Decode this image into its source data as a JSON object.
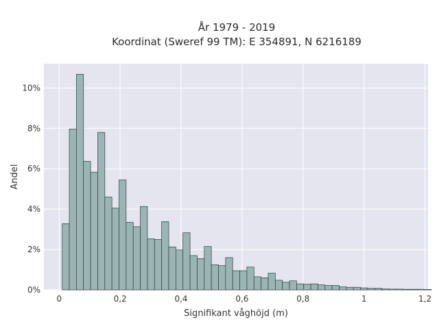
{
  "chart_data": {
    "type": "bar",
    "title_line1": "År 1979 - 2019",
    "title_line2": "Koordinat (Sweref 99 TM): E 354891, N 6216189",
    "xlabel": "Signifikant våghöjd (m)",
    "ylabel": "Andel",
    "xlim": [
      -0.05,
      1.21
    ],
    "ylim": [
      0,
      0.112
    ],
    "xticks": [
      {
        "value": 0,
        "label": "0"
      },
      {
        "value": 0.2,
        "label": "0,2"
      },
      {
        "value": 0.4,
        "label": "0,4"
      },
      {
        "value": 0.6,
        "label": "0,6"
      },
      {
        "value": 0.8,
        "label": "0,8"
      },
      {
        "value": 1.0,
        "label": "1"
      },
      {
        "value": 1.2,
        "label": "1,2"
      }
    ],
    "yticks": [
      {
        "value": 0,
        "label": "0%"
      },
      {
        "value": 0.02,
        "label": "2%"
      },
      {
        "value": 0.04,
        "label": "4%"
      },
      {
        "value": 0.06,
        "label": "6%"
      },
      {
        "value": 0.08,
        "label": "8%"
      },
      {
        "value": 0.1,
        "label": "10%"
      }
    ],
    "grid": true,
    "colors": {
      "plot_background": "#e5e5ef",
      "bar_fill": "#9ab5b4",
      "bar_stroke": "#2f3b3b",
      "grid": "#ffffff"
    },
    "bin_start": 0.01,
    "bin_width": 0.0233,
    "values": [
      0.0328,
      0.0797,
      0.1068,
      0.0637,
      0.0583,
      0.078,
      0.046,
      0.0405,
      0.0545,
      0.0335,
      0.0313,
      0.0413,
      0.0253,
      0.025,
      0.0338,
      0.0213,
      0.0198,
      0.0283,
      0.017,
      0.0155,
      0.0215,
      0.0125,
      0.012,
      0.016,
      0.0095,
      0.0095,
      0.0113,
      0.0065,
      0.006,
      0.0083,
      0.0048,
      0.0038,
      0.0045,
      0.003,
      0.0028,
      0.003,
      0.0025,
      0.0022,
      0.0022,
      0.0015,
      0.0013,
      0.0013,
      0.001,
      0.0008,
      0.0008,
      0.0005,
      0.0004,
      0.0004,
      0.0003,
      0.0003,
      0.0003,
      0.0002
    ]
  }
}
